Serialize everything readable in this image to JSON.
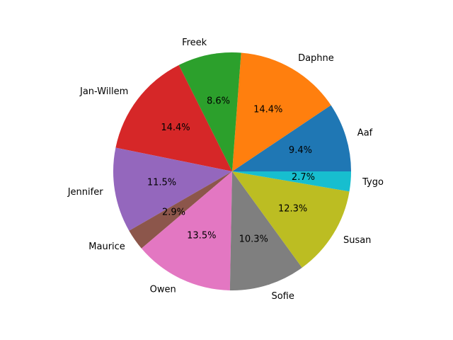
{
  "chart_data": {
    "type": "pie",
    "title": "",
    "start_angle_deg": 0,
    "direction": "counterclockwise",
    "legend": "none",
    "slices": [
      {
        "label": "Aaf",
        "value": 9.4,
        "pct_label": "9.4%",
        "color": "#1f77b4"
      },
      {
        "label": "Daphne",
        "value": 14.4,
        "pct_label": "14.4%",
        "color": "#ff7f0e"
      },
      {
        "label": "Freek",
        "value": 8.6,
        "pct_label": "8.6%",
        "color": "#2ca02c"
      },
      {
        "label": "Jan-Willem",
        "value": 14.4,
        "pct_label": "14.4%",
        "color": "#d62728"
      },
      {
        "label": "Jennifer",
        "value": 11.5,
        "pct_label": "11.5%",
        "color": "#9467bd"
      },
      {
        "label": "Maurice",
        "value": 2.9,
        "pct_label": "2.9%",
        "color": "#8c564b"
      },
      {
        "label": "Owen",
        "value": 13.5,
        "pct_label": "13.5%",
        "color": "#e377c2"
      },
      {
        "label": "Sofie",
        "value": 10.3,
        "pct_label": "10.3%",
        "color": "#7f7f7f"
      },
      {
        "label": "Susan",
        "value": 12.3,
        "pct_label": "12.3%",
        "color": "#bcbd22"
      },
      {
        "label": "Tygo",
        "value": 2.7,
        "pct_label": "2.7%",
        "color": "#17becf"
      }
    ]
  }
}
